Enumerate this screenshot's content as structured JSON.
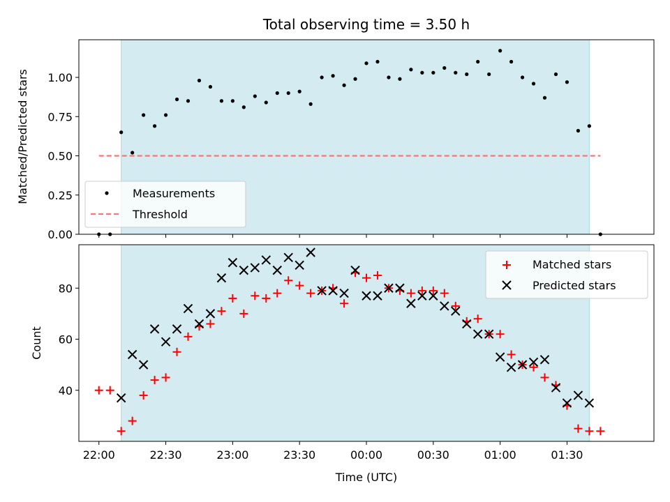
{
  "chart_data": [
    {
      "type": "scatter",
      "title": "Total observing time = 3.50 h",
      "xlabel": "",
      "ylabel": "Matched/Predicted stars",
      "ylim": [
        0,
        1.24
      ],
      "y_ticks": [
        "0.00",
        "0.25",
        "0.50",
        "0.75",
        "1.00"
      ],
      "y_tick_values": [
        0,
        0.25,
        0.5,
        0.75,
        1.0
      ],
      "shaded_region": {
        "from": "22:10",
        "to": "01:40",
        "color": "#d3ebf1"
      },
      "legend_position": "lower-left",
      "threshold": {
        "name": "Threshold",
        "value": 0.5,
        "from": "22:00",
        "to": "01:45",
        "color": "#f07878"
      },
      "series": [
        {
          "name": "Measurements",
          "color": "#000000",
          "x": [
            "22:00",
            "22:05",
            "22:10",
            "22:15",
            "22:20",
            "22:25",
            "22:30",
            "22:35",
            "22:40",
            "22:45",
            "22:50",
            "22:55",
            "23:00",
            "23:05",
            "23:10",
            "23:15",
            "23:20",
            "23:25",
            "23:30",
            "23:35",
            "23:40",
            "23:45",
            "23:50",
            "23:55",
            "00:00",
            "00:05",
            "00:10",
            "00:15",
            "00:20",
            "00:25",
            "00:30",
            "00:35",
            "00:40",
            "00:45",
            "00:50",
            "00:55",
            "01:00",
            "01:05",
            "01:10",
            "01:15",
            "01:20",
            "01:25",
            "01:30",
            "01:35",
            "01:40",
            "01:45"
          ],
          "y": [
            0.0,
            0.0,
            0.65,
            0.52,
            0.76,
            0.69,
            0.76,
            0.86,
            0.85,
            0.98,
            0.94,
            0.85,
            0.85,
            0.81,
            0.88,
            0.84,
            0.9,
            0.9,
            0.91,
            0.83,
            1.0,
            1.01,
            0.95,
            0.99,
            1.09,
            1.1,
            1.0,
            0.99,
            1.05,
            1.03,
            1.03,
            1.06,
            1.03,
            1.02,
            1.1,
            1.02,
            1.17,
            1.1,
            1.0,
            0.96,
            0.87,
            1.02,
            0.97,
            0.66,
            0.69,
            0.0
          ]
        }
      ]
    },
    {
      "type": "scatter",
      "title": "",
      "xlabel": "Time (UTC)",
      "ylabel": "Count",
      "xlim": [
        "21:51",
        "02:09"
      ],
      "ylim": [
        20,
        97
      ],
      "x_ticks": [
        "22:00",
        "22:30",
        "23:00",
        "23:30",
        "00:00",
        "00:30",
        "01:00",
        "01:30"
      ],
      "y_ticks": [
        "40",
        "60",
        "80"
      ],
      "y_tick_values": [
        40,
        60,
        80
      ],
      "shaded_region": {
        "from": "22:10",
        "to": "01:40",
        "color": "#d3ebf1"
      },
      "legend_position": "upper-right",
      "series": [
        {
          "name": "Matched stars",
          "color": "#ff0000",
          "marker": "+",
          "x": [
            "22:00",
            "22:05",
            "22:10",
            "22:15",
            "22:20",
            "22:25",
            "22:30",
            "22:35",
            "22:40",
            "22:45",
            "22:50",
            "22:55",
            "23:00",
            "23:05",
            "23:10",
            "23:15",
            "23:20",
            "23:25",
            "23:30",
            "23:35",
            "23:40",
            "23:45",
            "23:50",
            "23:55",
            "00:00",
            "00:05",
            "00:10",
            "00:15",
            "00:20",
            "00:25",
            "00:30",
            "00:35",
            "00:40",
            "00:45",
            "00:50",
            "00:55",
            "01:00",
            "01:05",
            "01:10",
            "01:15",
            "01:20",
            "01:25",
            "01:30",
            "01:35",
            "01:40",
            "01:45"
          ],
          "y": [
            40,
            40,
            24,
            28,
            38,
            44,
            45,
            55,
            61,
            65,
            66,
            71,
            76,
            70,
            77,
            76,
            78,
            83,
            81,
            78,
            79,
            80,
            74,
            86,
            84,
            85,
            80,
            79,
            78,
            79,
            79,
            78,
            73,
            67,
            68,
            62,
            62,
            54,
            50,
            49,
            45,
            42,
            34,
            25,
            24,
            24
          ]
        },
        {
          "name": "Predicted stars",
          "color": "#000000",
          "marker": "x",
          "x": [
            "22:10",
            "22:15",
            "22:20",
            "22:25",
            "22:30",
            "22:35",
            "22:40",
            "22:45",
            "22:50",
            "22:55",
            "23:00",
            "23:05",
            "23:10",
            "23:15",
            "23:20",
            "23:25",
            "23:30",
            "23:35",
            "23:40",
            "23:45",
            "23:50",
            "23:55",
            "00:00",
            "00:05",
            "00:10",
            "00:15",
            "00:20",
            "00:25",
            "00:30",
            "00:35",
            "00:40",
            "00:45",
            "00:50",
            "00:55",
            "01:00",
            "01:05",
            "01:10",
            "01:15",
            "01:20",
            "01:25",
            "01:30",
            "01:35",
            "01:40"
          ],
          "y": [
            37,
            54,
            50,
            64,
            59,
            64,
            72,
            66,
            70,
            84,
            90,
            87,
            88,
            91,
            87,
            92,
            89,
            94,
            79,
            79,
            78,
            87,
            77,
            77,
            80,
            80,
            74,
            77,
            77,
            73,
            71,
            66,
            62,
            62,
            53,
            49,
            50,
            51,
            52,
            41,
            35,
            38,
            35
          ]
        }
      ]
    }
  ]
}
